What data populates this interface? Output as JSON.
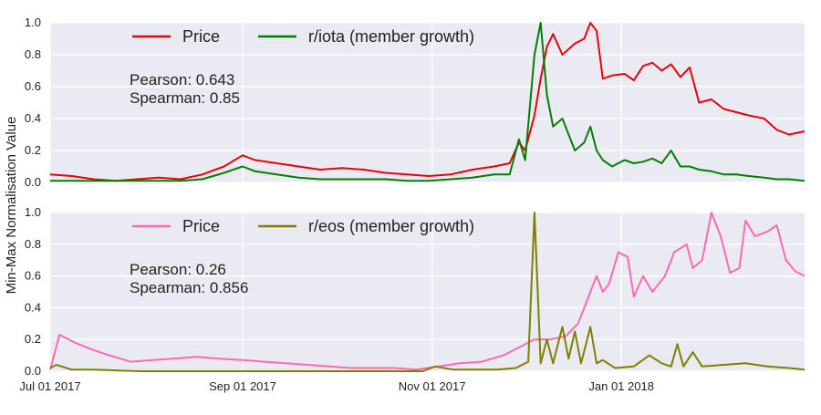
{
  "chart_data": [
    {
      "type": "line",
      "ylabel": "Min-Max Normalisation Value",
      "xlabel": "",
      "x_tick_labels": [
        "Jul 01 2017",
        "Sep 01 2017",
        "Nov 01 2017",
        "Jan 01 2018"
      ],
      "y_tick_labels": [
        "0.0",
        "0.2",
        "0.4",
        "0.6",
        "0.8",
        "1.0"
      ],
      "xlim": [
        "2017-07-01",
        "2018-03-01"
      ],
      "ylim": [
        0,
        1
      ],
      "grid": true,
      "legend_position": "top",
      "stats": {
        "pearson": "Pearson: 0.643",
        "spearman": "Spearman: 0.85"
      },
      "series": [
        {
          "name": "Price",
          "color": "#e8000b",
          "points": [
            [
              "2017-07-01",
              0.05
            ],
            [
              "2017-07-08",
              0.04
            ],
            [
              "2017-07-15",
              0.02
            ],
            [
              "2017-07-22",
              0.01
            ],
            [
              "2017-07-29",
              0.02
            ],
            [
              "2017-08-05",
              0.03
            ],
            [
              "2017-08-12",
              0.02
            ],
            [
              "2017-08-19",
              0.05
            ],
            [
              "2017-08-26",
              0.1
            ],
            [
              "2017-09-01",
              0.17
            ],
            [
              "2017-09-05",
              0.14
            ],
            [
              "2017-09-12",
              0.12
            ],
            [
              "2017-09-19",
              0.1
            ],
            [
              "2017-09-26",
              0.08
            ],
            [
              "2017-10-03",
              0.09
            ],
            [
              "2017-10-10",
              0.08
            ],
            [
              "2017-10-17",
              0.06
            ],
            [
              "2017-10-24",
              0.05
            ],
            [
              "2017-10-31",
              0.04
            ],
            [
              "2017-11-07",
              0.05
            ],
            [
              "2017-11-14",
              0.08
            ],
            [
              "2017-11-21",
              0.1
            ],
            [
              "2017-11-26",
              0.12
            ],
            [
              "2017-11-29",
              0.25
            ],
            [
              "2017-12-01",
              0.2
            ],
            [
              "2017-12-04",
              0.42
            ],
            [
              "2017-12-06",
              0.65
            ],
            [
              "2017-12-08",
              0.85
            ],
            [
              "2017-12-10",
              0.93
            ],
            [
              "2017-12-13",
              0.8
            ],
            [
              "2017-12-17",
              0.87
            ],
            [
              "2017-12-20",
              0.9
            ],
            [
              "2017-12-22",
              1.0
            ],
            [
              "2017-12-24",
              0.95
            ],
            [
              "2017-12-26",
              0.65
            ],
            [
              "2017-12-29",
              0.67
            ],
            [
              "2018-01-02",
              0.68
            ],
            [
              "2018-01-05",
              0.64
            ],
            [
              "2018-01-08",
              0.73
            ],
            [
              "2018-01-11",
              0.75
            ],
            [
              "2018-01-14",
              0.7
            ],
            [
              "2018-01-17",
              0.74
            ],
            [
              "2018-01-20",
              0.66
            ],
            [
              "2018-01-23",
              0.72
            ],
            [
              "2018-01-26",
              0.5
            ],
            [
              "2018-01-30",
              0.52
            ],
            [
              "2018-02-03",
              0.46
            ],
            [
              "2018-02-07",
              0.44
            ],
            [
              "2018-02-11",
              0.42
            ],
            [
              "2018-02-16",
              0.4
            ],
            [
              "2018-02-20",
              0.33
            ],
            [
              "2018-02-24",
              0.3
            ],
            [
              "2018-03-01",
              0.32
            ]
          ]
        },
        {
          "name": "r/iota (member growth)",
          "color": "#008000",
          "points": [
            [
              "2017-07-01",
              0.01
            ],
            [
              "2017-07-08",
              0.01
            ],
            [
              "2017-07-15",
              0.01
            ],
            [
              "2017-07-22",
              0.01
            ],
            [
              "2017-07-29",
              0.01
            ],
            [
              "2017-08-05",
              0.01
            ],
            [
              "2017-08-12",
              0.01
            ],
            [
              "2017-08-19",
              0.02
            ],
            [
              "2017-08-26",
              0.06
            ],
            [
              "2017-09-01",
              0.1
            ],
            [
              "2017-09-05",
              0.07
            ],
            [
              "2017-09-12",
              0.05
            ],
            [
              "2017-09-19",
              0.03
            ],
            [
              "2017-09-26",
              0.02
            ],
            [
              "2017-10-03",
              0.02
            ],
            [
              "2017-10-10",
              0.02
            ],
            [
              "2017-10-17",
              0.02
            ],
            [
              "2017-10-24",
              0.01
            ],
            [
              "2017-10-31",
              0.01
            ],
            [
              "2017-11-07",
              0.02
            ],
            [
              "2017-11-14",
              0.03
            ],
            [
              "2017-11-21",
              0.05
            ],
            [
              "2017-11-26",
              0.05
            ],
            [
              "2017-11-29",
              0.27
            ],
            [
              "2017-12-01",
              0.14
            ],
            [
              "2017-12-04",
              0.8
            ],
            [
              "2017-12-06",
              1.0
            ],
            [
              "2017-12-08",
              0.55
            ],
            [
              "2017-12-10",
              0.35
            ],
            [
              "2017-12-13",
              0.4
            ],
            [
              "2017-12-17",
              0.2
            ],
            [
              "2017-12-20",
              0.25
            ],
            [
              "2017-12-22",
              0.35
            ],
            [
              "2017-12-24",
              0.2
            ],
            [
              "2017-12-26",
              0.14
            ],
            [
              "2017-12-29",
              0.1
            ],
            [
              "2018-01-02",
              0.14
            ],
            [
              "2018-01-05",
              0.12
            ],
            [
              "2018-01-08",
              0.13
            ],
            [
              "2018-01-11",
              0.15
            ],
            [
              "2018-01-14",
              0.12
            ],
            [
              "2018-01-17",
              0.2
            ],
            [
              "2018-01-20",
              0.1
            ],
            [
              "2018-01-23",
              0.1
            ],
            [
              "2018-01-26",
              0.08
            ],
            [
              "2018-01-30",
              0.07
            ],
            [
              "2018-02-03",
              0.05
            ],
            [
              "2018-02-07",
              0.05
            ],
            [
              "2018-02-11",
              0.04
            ],
            [
              "2018-02-16",
              0.03
            ],
            [
              "2018-02-20",
              0.02
            ],
            [
              "2018-02-24",
              0.02
            ],
            [
              "2018-03-01",
              0.01
            ]
          ]
        }
      ]
    },
    {
      "type": "line",
      "ylabel": "Min-Max Normalisation Value",
      "xlabel": "",
      "x_tick_labels": [
        "Jul 01 2017",
        "Sep 01 2017",
        "Nov 01 2017",
        "Jan 01 2018"
      ],
      "y_tick_labels": [
        "0.0",
        "0.2",
        "0.4",
        "0.6",
        "0.8",
        "1.0"
      ],
      "xlim": [
        "2017-07-01",
        "2018-03-01"
      ],
      "ylim": [
        0,
        1
      ],
      "grid": true,
      "legend_position": "top",
      "stats": {
        "pearson": "Pearson: 0.26",
        "spearman": "Spearman: 0.856"
      },
      "series": [
        {
          "name": "Price",
          "color": "#ff69b4",
          "points": [
            [
              "2017-07-01",
              0.01
            ],
            [
              "2017-07-04",
              0.23
            ],
            [
              "2017-07-09",
              0.18
            ],
            [
              "2017-07-14",
              0.14
            ],
            [
              "2017-07-20",
              0.1
            ],
            [
              "2017-07-27",
              0.06
            ],
            [
              "2017-08-03",
              0.07
            ],
            [
              "2017-08-10",
              0.08
            ],
            [
              "2017-08-17",
              0.09
            ],
            [
              "2017-08-24",
              0.08
            ],
            [
              "2017-09-01",
              0.07
            ],
            [
              "2017-09-08",
              0.06
            ],
            [
              "2017-09-15",
              0.05
            ],
            [
              "2017-09-22",
              0.04
            ],
            [
              "2017-09-29",
              0.03
            ],
            [
              "2017-10-06",
              0.02
            ],
            [
              "2017-10-13",
              0.02
            ],
            [
              "2017-10-20",
              0.02
            ],
            [
              "2017-10-27",
              0.01
            ],
            [
              "2017-11-03",
              0.03
            ],
            [
              "2017-11-10",
              0.05
            ],
            [
              "2017-11-17",
              0.06
            ],
            [
              "2017-11-24",
              0.1
            ],
            [
              "2017-11-29",
              0.15
            ],
            [
              "2017-12-04",
              0.2
            ],
            [
              "2017-12-09",
              0.2
            ],
            [
              "2017-12-14",
              0.22
            ],
            [
              "2017-12-18",
              0.3
            ],
            [
              "2017-12-21",
              0.45
            ],
            [
              "2017-12-24",
              0.6
            ],
            [
              "2017-12-26",
              0.5
            ],
            [
              "2017-12-28",
              0.55
            ],
            [
              "2017-12-31",
              0.75
            ],
            [
              "2018-01-03",
              0.72
            ],
            [
              "2018-01-05",
              0.47
            ],
            [
              "2018-01-08",
              0.6
            ],
            [
              "2018-01-11",
              0.5
            ],
            [
              "2018-01-15",
              0.6
            ],
            [
              "2018-01-18",
              0.75
            ],
            [
              "2018-01-22",
              0.8
            ],
            [
              "2018-01-24",
              0.65
            ],
            [
              "2018-01-27",
              0.7
            ],
            [
              "2018-01-30",
              1.0
            ],
            [
              "2018-02-02",
              0.85
            ],
            [
              "2018-02-05",
              0.62
            ],
            [
              "2018-02-08",
              0.65
            ],
            [
              "2018-02-10",
              0.95
            ],
            [
              "2018-02-13",
              0.85
            ],
            [
              "2018-02-17",
              0.88
            ],
            [
              "2018-02-20",
              0.92
            ],
            [
              "2018-02-23",
              0.7
            ],
            [
              "2018-02-26",
              0.63
            ],
            [
              "2018-03-01",
              0.6
            ]
          ]
        },
        {
          "name": "r/eos (member growth)",
          "color": "#808000",
          "points": [
            [
              "2017-07-01",
              0.02
            ],
            [
              "2017-07-03",
              0.04
            ],
            [
              "2017-07-08",
              0.01
            ],
            [
              "2017-07-15",
              0.01
            ],
            [
              "2017-07-30",
              0.0
            ],
            [
              "2017-08-15",
              0.0
            ],
            [
              "2017-09-01",
              0.0
            ],
            [
              "2017-09-15",
              0.0
            ],
            [
              "2017-10-01",
              0.0
            ],
            [
              "2017-10-15",
              0.0
            ],
            [
              "2017-10-29",
              0.0
            ],
            [
              "2017-11-02",
              0.03
            ],
            [
              "2017-11-08",
              0.01
            ],
            [
              "2017-11-15",
              0.01
            ],
            [
              "2017-11-22",
              0.01
            ],
            [
              "2017-11-28",
              0.02
            ],
            [
              "2017-12-02",
              0.06
            ],
            [
              "2017-12-04",
              1.0
            ],
            [
              "2017-12-06",
              0.05
            ],
            [
              "2017-12-08",
              0.2
            ],
            [
              "2017-12-10",
              0.05
            ],
            [
              "2017-12-13",
              0.28
            ],
            [
              "2017-12-15",
              0.08
            ],
            [
              "2017-12-17",
              0.25
            ],
            [
              "2017-12-19",
              0.05
            ],
            [
              "2017-12-22",
              0.28
            ],
            [
              "2017-12-24",
              0.05
            ],
            [
              "2017-12-26",
              0.07
            ],
            [
              "2017-12-30",
              0.02
            ],
            [
              "2018-01-05",
              0.03
            ],
            [
              "2018-01-10",
              0.1
            ],
            [
              "2018-01-14",
              0.05
            ],
            [
              "2018-01-17",
              0.03
            ],
            [
              "2018-01-19",
              0.17
            ],
            [
              "2018-01-21",
              0.03
            ],
            [
              "2018-01-24",
              0.12
            ],
            [
              "2018-01-27",
              0.03
            ],
            [
              "2018-02-03",
              0.04
            ],
            [
              "2018-02-10",
              0.05
            ],
            [
              "2018-02-17",
              0.03
            ],
            [
              "2018-02-24",
              0.02
            ],
            [
              "2018-03-01",
              0.01
            ]
          ]
        }
      ]
    }
  ]
}
